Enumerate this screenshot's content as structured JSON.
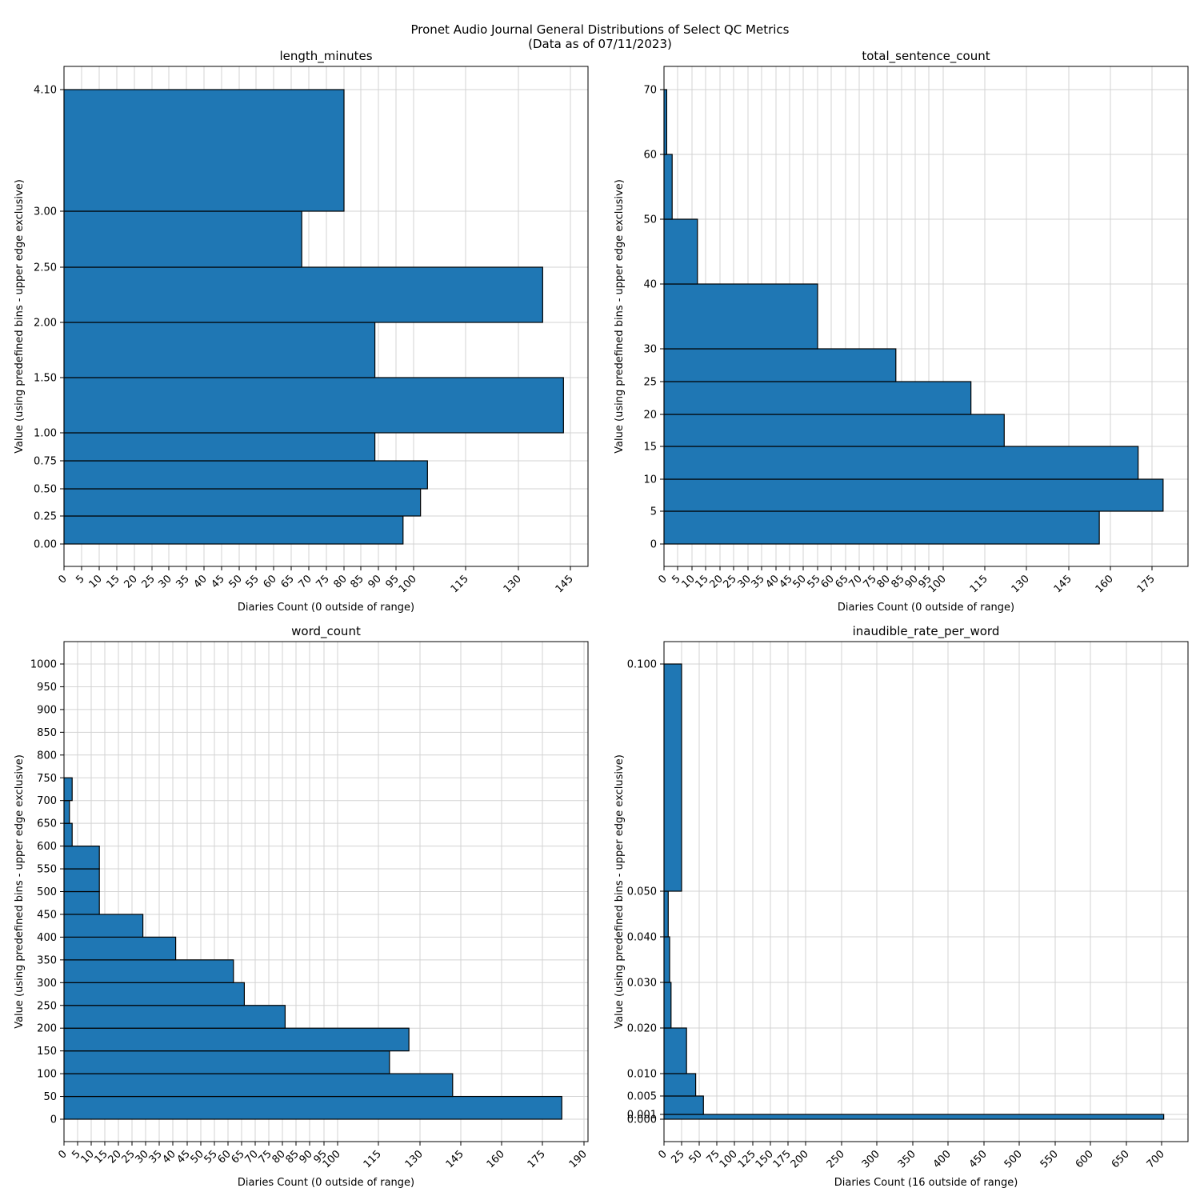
{
  "figure": {
    "title_line1": "Pronet Audio Journal General Distributions of Select QC Metrics",
    "title_line2": "(Data as of 07/11/2023)"
  },
  "colors": {
    "bar": "#1f77b4",
    "edge": "#000000",
    "grid": "#d3d3d3"
  },
  "chart_data": [
    {
      "type": "bar",
      "orientation": "horizontal",
      "title": "length_minutes",
      "xlabel": "Diaries Count (0 outside of range)",
      "ylabel": "Value (using predefined bins - upper edge exclusive)",
      "grid": true,
      "xlim": [
        0,
        150
      ],
      "x_ticks": [
        0,
        5,
        10,
        15,
        20,
        25,
        30,
        35,
        40,
        45,
        50,
        55,
        60,
        65,
        70,
        75,
        80,
        85,
        90,
        95,
        100,
        115,
        130,
        145
      ],
      "y_tick_values": [
        0,
        0.25,
        0.5,
        0.75,
        1.0,
        1.5,
        2.0,
        2.5,
        3.0,
        4.1
      ],
      "y_tick_labels": [
        "0.00",
        "0.25",
        "0.50",
        "0.75",
        "1.00",
        "1.50",
        "2.00",
        "2.50",
        "3.00",
        "4.10"
      ],
      "bin_edges": [
        0,
        0.25,
        0.5,
        0.75,
        1.0,
        1.5,
        2.0,
        2.5,
        3.0,
        4.1
      ],
      "values": [
        97,
        102,
        104,
        89,
        143,
        89,
        137,
        68,
        80
      ]
    },
    {
      "type": "bar",
      "orientation": "horizontal",
      "title": "total_sentence_count",
      "xlabel": "Diaries Count (0 outside of range)",
      "ylabel": "Value (using predefined bins - upper edge exclusive)",
      "grid": true,
      "xlim": [
        0,
        188
      ],
      "x_ticks": [
        0,
        5,
        10,
        15,
        20,
        25,
        30,
        35,
        40,
        45,
        50,
        55,
        60,
        65,
        70,
        75,
        80,
        85,
        90,
        95,
        100,
        115,
        130,
        145,
        160,
        175
      ],
      "y_tick_values": [
        0,
        5,
        10,
        15,
        20,
        25,
        30,
        40,
        50,
        60,
        70
      ],
      "y_tick_labels": [
        "0",
        "5",
        "10",
        "15",
        "20",
        "25",
        "30",
        "40",
        "50",
        "60",
        "70"
      ],
      "bin_edges": [
        0,
        5,
        10,
        15,
        20,
        25,
        30,
        40,
        50,
        60,
        70
      ],
      "values": [
        156,
        179,
        170,
        122,
        110,
        83,
        55,
        12,
        3,
        1
      ]
    },
    {
      "type": "bar",
      "orientation": "horizontal",
      "title": "word_count",
      "xlabel": "Diaries Count (0 outside of range)",
      "ylabel": "Value (using predefined bins - upper edge exclusive)",
      "grid": true,
      "xlim": [
        0,
        191
      ],
      "x_ticks": [
        0,
        5,
        10,
        15,
        20,
        25,
        30,
        35,
        40,
        45,
        50,
        55,
        60,
        65,
        70,
        75,
        80,
        85,
        90,
        95,
        100,
        115,
        130,
        145,
        160,
        175,
        190
      ],
      "y_tick_values": [
        0,
        50,
        100,
        150,
        200,
        250,
        300,
        350,
        400,
        450,
        500,
        550,
        600,
        650,
        700,
        750,
        800,
        850,
        900,
        950,
        1000
      ],
      "y_tick_labels": [
        "0",
        "50",
        "100",
        "150",
        "200",
        "250",
        "300",
        "350",
        "400",
        "450",
        "500",
        "550",
        "600",
        "650",
        "700",
        "750",
        "800",
        "850",
        "900",
        "950",
        "1000"
      ],
      "bin_edges": [
        0,
        50,
        100,
        150,
        200,
        250,
        300,
        350,
        400,
        450,
        500,
        550,
        600,
        650,
        700,
        750
      ],
      "values": [
        182,
        142,
        119,
        126,
        81,
        66,
        62,
        41,
        29,
        13,
        13,
        13,
        3,
        2,
        3
      ]
    },
    {
      "type": "bar",
      "orientation": "horizontal",
      "title": "inaudible_rate_per_word",
      "xlabel": "Diaries Count (16 outside of range)",
      "ylabel": "Value (using predefined bins - upper edge exclusive)",
      "grid": true,
      "xlim": [
        0,
        735
      ],
      "x_ticks": [
        0,
        25,
        50,
        75,
        100,
        125,
        150,
        175,
        200,
        250,
        300,
        350,
        400,
        450,
        500,
        550,
        600,
        650,
        700
      ],
      "y_tick_values": [
        0,
        0.001,
        0.005,
        0.01,
        0.02,
        0.03,
        0.04,
        0.05,
        0.1
      ],
      "y_tick_labels": [
        "0.000",
        "0.001",
        "0.005",
        "0.010",
        "0.020",
        "0.030",
        "0.040",
        "0.050",
        "0.100"
      ],
      "bin_edges": [
        0,
        0.001,
        0.005,
        0.01,
        0.02,
        0.03,
        0.04,
        0.05,
        0.1
      ],
      "values": [
        703,
        56,
        45,
        32,
        10,
        8,
        6,
        25
      ]
    }
  ]
}
